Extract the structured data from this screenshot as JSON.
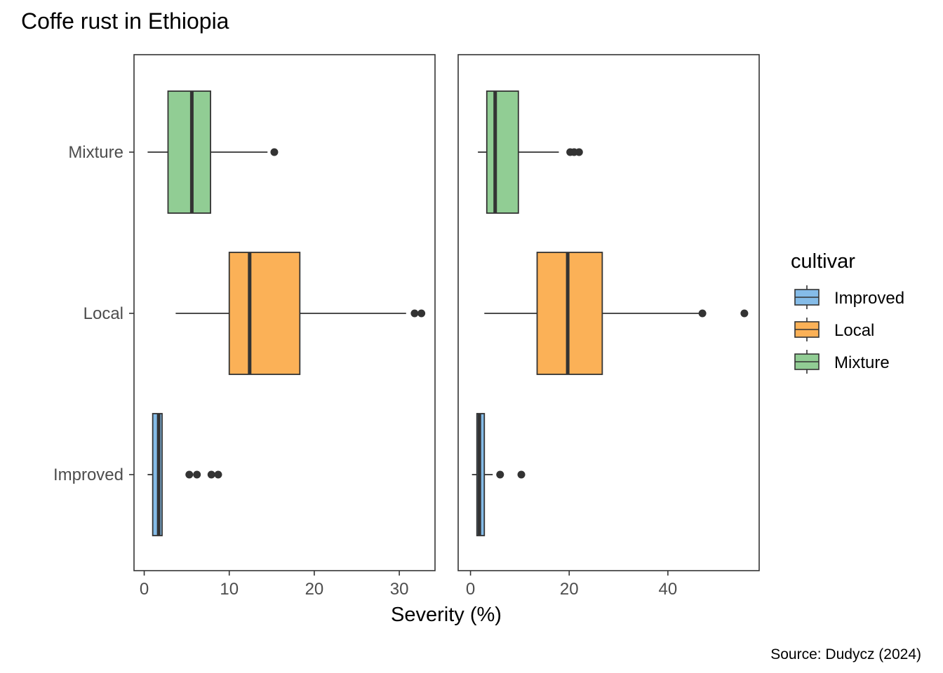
{
  "chart_data": {
    "type": "boxplot",
    "title": "Coffe rust in Ethiopia",
    "xlabel": "Severity (%)",
    "ylabel": "",
    "caption": "Source: Dudycz (2024)",
    "categories": [
      "Improved",
      "Local",
      "Mixture"
    ],
    "colors": {
      "Improved": "#85bce8",
      "Local": "#fbb157",
      "Mixture": "#91cd94"
    },
    "legend": {
      "title": "cultivar",
      "position": "right",
      "entries": [
        "Improved",
        "Local",
        "Mixture"
      ]
    },
    "panels": [
      {
        "xlim": [
          -1.2,
          34.2
        ],
        "ticks": [
          0,
          10,
          20,
          30
        ],
        "tick_labels": [
          "0",
          "10",
          "20",
          "30"
        ],
        "boxes": [
          {
            "category": "Improved",
            "min": 0.4,
            "q1": 1.0,
            "median": 1.7,
            "q3": 2.1,
            "max": 2.1,
            "outliers": [
              5.3,
              6.2,
              7.9,
              8.7
            ]
          },
          {
            "category": "Local",
            "min": 3.7,
            "q1": 10.0,
            "median": 12.4,
            "q3": 18.3,
            "max": 30.8,
            "outliers": [
              31.8,
              32.6
            ]
          },
          {
            "category": "Mixture",
            "min": 0.4,
            "q1": 2.8,
            "median": 5.6,
            "q3": 7.8,
            "max": 14.5,
            "outliers": [
              15.3
            ]
          }
        ]
      },
      {
        "xlim": [
          -2.5,
          58.5
        ],
        "ticks": [
          0,
          20,
          40
        ],
        "tick_labels": [
          "0",
          "20",
          "40"
        ],
        "boxes": [
          {
            "category": "Improved",
            "min": 0.3,
            "q1": 1.3,
            "median": 1.8,
            "q3": 2.8,
            "max": 4.5,
            "outliers": [
              6.0,
              10.3
            ]
          },
          {
            "category": "Local",
            "min": 2.8,
            "q1": 13.5,
            "median": 19.7,
            "q3": 26.7,
            "max": 46.8,
            "outliers": [
              47.0,
              55.5
            ]
          },
          {
            "category": "Mixture",
            "min": 1.5,
            "q1": 3.3,
            "median": 5.0,
            "q3": 9.7,
            "max": 17.9,
            "outliers": [
              20.2,
              21.0,
              22.0
            ]
          }
        ]
      }
    ]
  }
}
